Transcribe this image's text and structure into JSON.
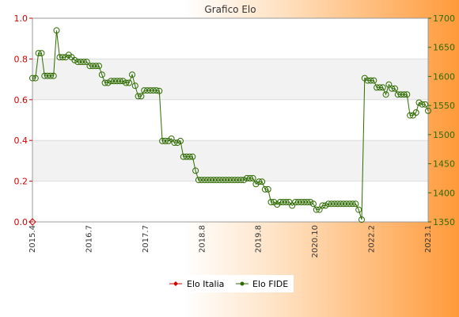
{
  "chart_data": {
    "type": "line",
    "title": "Grafico Elo",
    "grid": true,
    "legend_position": "bottom-center",
    "y_left": {
      "ylim": [
        0.0,
        1.0
      ],
      "ticks": [
        "0.0",
        "0.2",
        "0.4",
        "0.6",
        "0.8",
        "1.0"
      ],
      "color": "#d00000"
    },
    "y_right": {
      "ylim": [
        1350,
        1700
      ],
      "ticks": [
        "1350",
        "1400",
        "1450",
        "1500",
        "1550",
        "1600",
        "1650",
        "1700"
      ],
      "color": "#2e6b00"
    },
    "x_tick_labels": [
      "2015.4",
      "2016.7",
      "2017.7",
      "2018.8",
      "2019.8",
      "2020.10",
      "2022.2",
      "2023.1"
    ],
    "series": [
      {
        "name": "Elo Italia",
        "axis": "left",
        "color": "#d00000",
        "values": [
          0.0
        ]
      },
      {
        "name": "Elo FIDE",
        "axis": "right",
        "color": "#2e6b00",
        "values": [
          1597,
          1597,
          1640,
          1640,
          1601,
          1601,
          1601,
          1601,
          1679,
          1633,
          1633,
          1633,
          1637,
          1633,
          1628,
          1625,
          1625,
          1625,
          1625,
          1618,
          1618,
          1618,
          1618,
          1603,
          1589,
          1589,
          1592,
          1592,
          1592,
          1592,
          1592,
          1589,
          1589,
          1603,
          1584,
          1566,
          1566,
          1576,
          1576,
          1576,
          1576,
          1576,
          1575,
          1489,
          1489,
          1489,
          1493,
          1486,
          1486,
          1489,
          1462,
          1462,
          1462,
          1462,
          1438,
          1422,
          1422,
          1422,
          1422,
          1422,
          1422,
          1422,
          1422,
          1422,
          1422,
          1422,
          1422,
          1422,
          1422,
          1422,
          1422,
          1425,
          1425,
          1425,
          1415,
          1419,
          1419,
          1406,
          1406,
          1384,
          1384,
          1380,
          1384,
          1384,
          1384,
          1384,
          1378,
          1384,
          1384,
          1384,
          1384,
          1384,
          1384,
          1381,
          1371,
          1371,
          1378,
          1378,
          1381,
          1381,
          1381,
          1381,
          1381,
          1381,
          1381,
          1381,
          1381,
          1381,
          1371,
          1354,
          1597,
          1593,
          1593,
          1593,
          1581,
          1581,
          1581,
          1569,
          1586,
          1579,
          1579,
          1569,
          1569,
          1569,
          1569,
          1533,
          1533,
          1538,
          1555,
          1552,
          1552,
          1541
        ]
      }
    ]
  }
}
